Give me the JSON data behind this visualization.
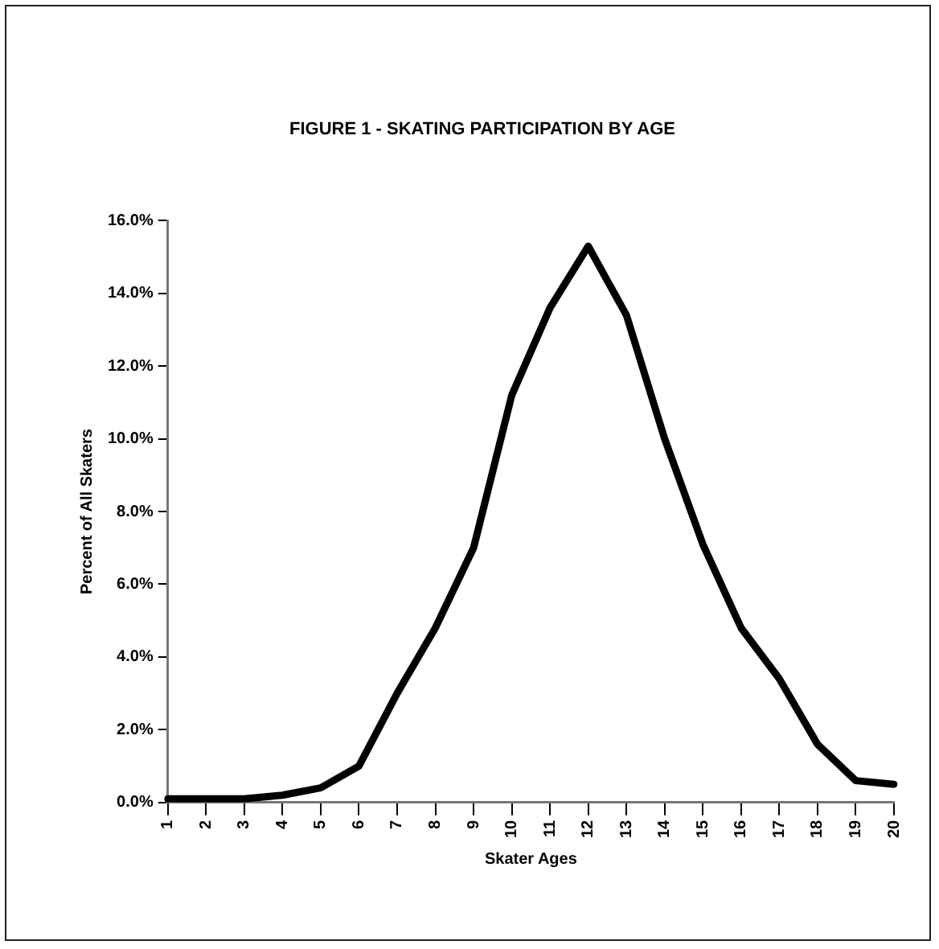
{
  "chart_data": {
    "type": "line",
    "title": "FIGURE 1 - SKATING PARTICIPATION BY AGE",
    "xlabel": "Skater Ages",
    "ylabel": "Percent of All Skaters",
    "categories": [
      "1",
      "2",
      "3",
      "4",
      "5",
      "6",
      "7",
      "8",
      "9",
      "10",
      "11",
      "12",
      "13",
      "14",
      "15",
      "16",
      "17",
      "18",
      "19",
      "20"
    ],
    "series": [
      {
        "color": "#000000",
        "values": [
          0.1,
          0.1,
          0.1,
          0.2,
          0.4,
          1.0,
          3.0,
          4.8,
          7.0,
          11.2,
          13.6,
          15.3,
          13.4,
          10.0,
          7.1,
          4.8,
          3.4,
          1.6,
          0.6,
          0.5
        ]
      }
    ],
    "ylim": [
      0,
      16
    ],
    "yticks": [
      {
        "value": 0,
        "label": "0.0%"
      },
      {
        "value": 2,
        "label": "2.0%"
      },
      {
        "value": 4,
        "label": "4.0%"
      },
      {
        "value": 6,
        "label": "6.0%"
      },
      {
        "value": 8,
        "label": "8.0%"
      },
      {
        "value": 10,
        "label": "10.0%"
      },
      {
        "value": 12,
        "label": "12.0%"
      },
      {
        "value": 14,
        "label": "14.0%"
      },
      {
        "value": 16,
        "label": "16.0%"
      }
    ],
    "grid": false,
    "legend": false,
    "marker": "none",
    "line_style": "solid"
  }
}
